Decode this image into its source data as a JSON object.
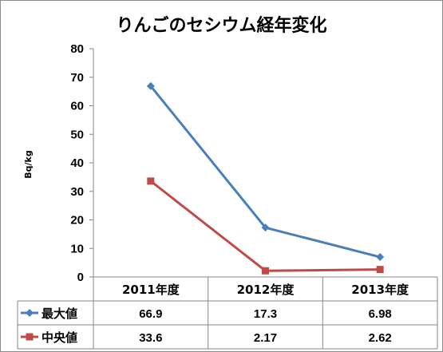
{
  "chart_data": {
    "type": "line",
    "title": "りんごのセシウム経年変化",
    "ylabel": "Bq/kg",
    "xlabel": "",
    "categories": [
      "2011年度",
      "2012年度",
      "2013年度"
    ],
    "ylim": [
      0,
      80
    ],
    "yticks": [
      0,
      10,
      20,
      30,
      40,
      50,
      60,
      70,
      80
    ],
    "grid": false,
    "legend": "data-table",
    "series": [
      {
        "name": "最大値",
        "values": [
          66.9,
          17.3,
          6.98
        ],
        "labels": [
          "66.9",
          "17.3",
          "6.98"
        ],
        "color": "#4a7ebb",
        "marker": "diamond"
      },
      {
        "name": "中央値",
        "values": [
          33.6,
          2.17,
          2.62
        ],
        "labels": [
          "33.6",
          "2.17",
          "2.62"
        ],
        "color": "#be4b48",
        "marker": "square"
      }
    ]
  }
}
